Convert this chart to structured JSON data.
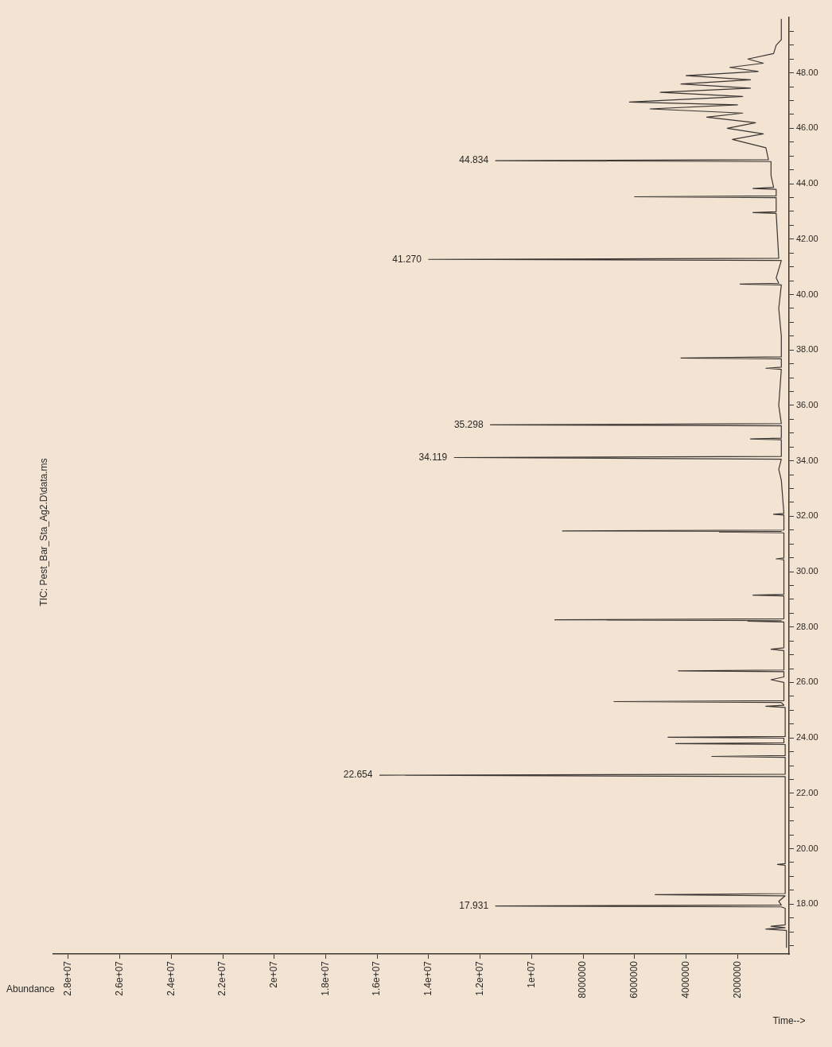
{
  "chart_data": {
    "type": "line",
    "title": "TIC: Pest_Bar_Sta_Ag2.D\\data.ms",
    "xlabel": "Abundance",
    "values": [
      16.42,
      17.05,
      17.1,
      17.15,
      17.2,
      17.25,
      17.85,
      17.9,
      17.931,
      17.97,
      18.1,
      18.3,
      18.34,
      18.38,
      19.4,
      19.43,
      19.46,
      22.6,
      22.654,
      22.69,
      23.3,
      23.33,
      23.36,
      23.76,
      23.79,
      23.82,
      23.99,
      24.02,
      24.05,
      25.1,
      25.14,
      25.18,
      25.28,
      25.31,
      25.34,
      26.0,
      26.1,
      26.2,
      26.39,
      26.42,
      26.45,
      27.15,
      27.2,
      27.25,
      28.18,
      28.21,
      28.23,
      28.26,
      28.3,
      29.12,
      29.15,
      29.18,
      30.43,
      30.46,
      30.49,
      31.4,
      31.43,
      31.45,
      31.47,
      31.5,
      32.04,
      32.07,
      32.1,
      33.3,
      33.7,
      34.06,
      34.119,
      34.16,
      34.76,
      34.79,
      34.82,
      35.26,
      35.298,
      35.34,
      36.0,
      37.3,
      37.34,
      37.38,
      37.68,
      37.71,
      37.75,
      38.5,
      39.5,
      40.35,
      40.38,
      40.41,
      40.6,
      41.23,
      41.27,
      41.31,
      42.93,
      42.96,
      42.99,
      43.5,
      43.53,
      43.56,
      43.8,
      43.83,
      43.87,
      44.3,
      44.8,
      44.834,
      44.87,
      45.3,
      45.6,
      45.8,
      46.0,
      46.2,
      46.4,
      46.55,
      46.7,
      46.85,
      46.95,
      47.15,
      47.3,
      47.45,
      47.6,
      47.75,
      47.9,
      48.05,
      48.2,
      48.35,
      48.5,
      48.7,
      49.0,
      49.2,
      49.95
    ],
    "x": [
      100000,
      100000,
      900000,
      150000,
      700000,
      150000,
      150000,
      300000,
      11400000,
      300000,
      400000,
      150000,
      5200000,
      150000,
      150000,
      450000,
      150000,
      150000,
      15900000,
      150000,
      150000,
      3000000,
      150000,
      150000,
      4400000,
      200000,
      200000,
      4700000,
      150000,
      150000,
      900000,
      200000,
      300000,
      6800000,
      200000,
      200000,
      700000,
      200000,
      200000,
      4300000,
      200000,
      200000,
      700000,
      200000,
      200000,
      1600000,
      300000,
      9100000,
      200000,
      200000,
      1400000,
      200000,
      200000,
      500000,
      200000,
      200000,
      2700000,
      300000,
      8800000,
      200000,
      200000,
      600000,
      200000,
      300000,
      400000,
      300000,
      13000000,
      300000,
      300000,
      1500000,
      300000,
      300000,
      11600000,
      300000,
      400000,
      300000,
      900000,
      300000,
      300000,
      4200000,
      300000,
      300000,
      400000,
      300000,
      1900000,
      400000,
      500000,
      300000,
      14000000,
      400000,
      500000,
      1400000,
      500000,
      500000,
      6000000,
      500000,
      500000,
      1400000,
      600000,
      700000,
      700000,
      11400000,
      800000,
      900000,
      2200000,
      1000000,
      2400000,
      1300000,
      3200000,
      1800000,
      5400000,
      2000000,
      6200000,
      1800000,
      5000000,
      1500000,
      4200000,
      1500000,
      4000000,
      1200000,
      2300000,
      1000000,
      1600000,
      600000,
      500000,
      300000,
      300000
    ],
    "color": "#3a3633",
    "xlim": [
      28600000,
      0
    ],
    "xticks": [
      {
        "value": 28000000,
        "label": "2.8e+07"
      },
      {
        "value": 26000000,
        "label": "2.6e+07"
      },
      {
        "value": 24000000,
        "label": "2.4e+07"
      },
      {
        "value": 22000000,
        "label": "2.2e+07"
      },
      {
        "value": 20000000,
        "label": "2e+07"
      },
      {
        "value": 18000000,
        "label": "1.8e+07"
      },
      {
        "value": 16000000,
        "label": "1.6e+07"
      },
      {
        "value": 14000000,
        "label": "1.4e+07"
      },
      {
        "value": 12000000,
        "label": "1.2e+07"
      },
      {
        "value": 10000000,
        "label": "1e+07"
      },
      8000000,
      6000000,
      4000000,
      2000000
    ],
    "ylim": [
      16.2,
      50.0
    ],
    "yticks": [
      {
        "value": 16.5,
        "label": null
      },
      {
        "value": 17,
        "label": null
      },
      {
        "value": 17.5,
        "label": null
      },
      {
        "value": 18,
        "label": "18.00"
      },
      {
        "value": 18.5,
        "label": null
      },
      {
        "value": 19,
        "label": null
      },
      {
        "value": 19.5,
        "label": null
      },
      {
        "value": 20,
        "label": "20.00"
      },
      {
        "value": 20.5,
        "label": null
      },
      {
        "value": 21,
        "label": null
      },
      {
        "value": 21.5,
        "label": null
      },
      {
        "value": 22,
        "label": "22.00"
      },
      {
        "value": 22.5,
        "label": null
      },
      {
        "value": 23,
        "label": null
      },
      {
        "value": 23.5,
        "label": null
      },
      {
        "value": 24,
        "label": "24.00"
      },
      {
        "value": 24.5,
        "label": null
      },
      {
        "value": 25,
        "label": null
      },
      {
        "value": 25.5,
        "label": null
      },
      {
        "value": 26,
        "label": "26.00"
      },
      {
        "value": 26.5,
        "label": null
      },
      {
        "value": 27,
        "label": null
      },
      {
        "value": 27.5,
        "label": null
      },
      {
        "value": 28,
        "label": "28.00"
      },
      {
        "value": 28.5,
        "label": null
      },
      {
        "value": 29,
        "label": null
      },
      {
        "value": 29.5,
        "label": null
      },
      {
        "value": 30,
        "label": "30.00"
      },
      {
        "value": 30.5,
        "label": null
      },
      {
        "value": 31,
        "label": null
      },
      {
        "value": 31.5,
        "label": null
      },
      {
        "value": 32,
        "label": "32.00"
      },
      {
        "value": 32.5,
        "label": null
      },
      {
        "value": 33,
        "label": null
      },
      {
        "value": 33.5,
        "label": null
      },
      {
        "value": 34,
        "label": "34.00"
      },
      {
        "value": 34.5,
        "label": null
      },
      {
        "value": 35,
        "label": null
      },
      {
        "value": 35.5,
        "label": null
      },
      {
        "value": 36,
        "label": "36.00"
      },
      {
        "value": 36.5,
        "label": null
      },
      {
        "value": 37,
        "label": null
      },
      {
        "value": 37.5,
        "label": null
      },
      {
        "value": 38,
        "label": "38.00"
      },
      {
        "value": 38.5,
        "label": null
      },
      {
        "value": 39,
        "label": null
      },
      {
        "value": 39.5,
        "label": null
      },
      {
        "value": 40,
        "label": "40.00"
      },
      {
        "value": 40.5,
        "label": null
      },
      {
        "value": 41,
        "label": null
      },
      {
        "value": 41.5,
        "label": null
      },
      {
        "value": 42,
        "label": "42.00"
      },
      {
        "value": 42.5,
        "label": null
      },
      {
        "value": 43,
        "label": null
      },
      {
        "value": 43.5,
        "label": null
      },
      {
        "value": 44,
        "label": "44.00"
      },
      {
        "value": 44.5,
        "label": null
      },
      {
        "value": 45,
        "label": null
      },
      {
        "value": 45.5,
        "label": null
      },
      {
        "value": 46,
        "label": "46.00"
      },
      {
        "value": 46.5,
        "label": null
      },
      {
        "value": 47,
        "label": null
      },
      {
        "value": 47.5,
        "label": null
      },
      {
        "value": 48,
        "label": "48.00"
      },
      {
        "value": 48.5,
        "label": null
      },
      {
        "value": 49,
        "label": null
      },
      {
        "value": 49.5,
        "label": null
      }
    ],
    "annotations": [
      "Time-->",
      {
        "text": "17.931",
        "x": 11400000,
        "y": 17.931
      },
      {
        "text": "22.654",
        "x": 15900000,
        "y": 22.654
      },
      {
        "text": "34.119",
        "x": 13000000,
        "y": 34.119
      },
      {
        "text": "35.298",
        "x": 11600000,
        "y": 35.298
      },
      {
        "text": "41.270",
        "x": 14000000,
        "y": 41.27
      },
      {
        "text": "44.834",
        "x": 11400000,
        "y": 44.834
      }
    ]
  }
}
